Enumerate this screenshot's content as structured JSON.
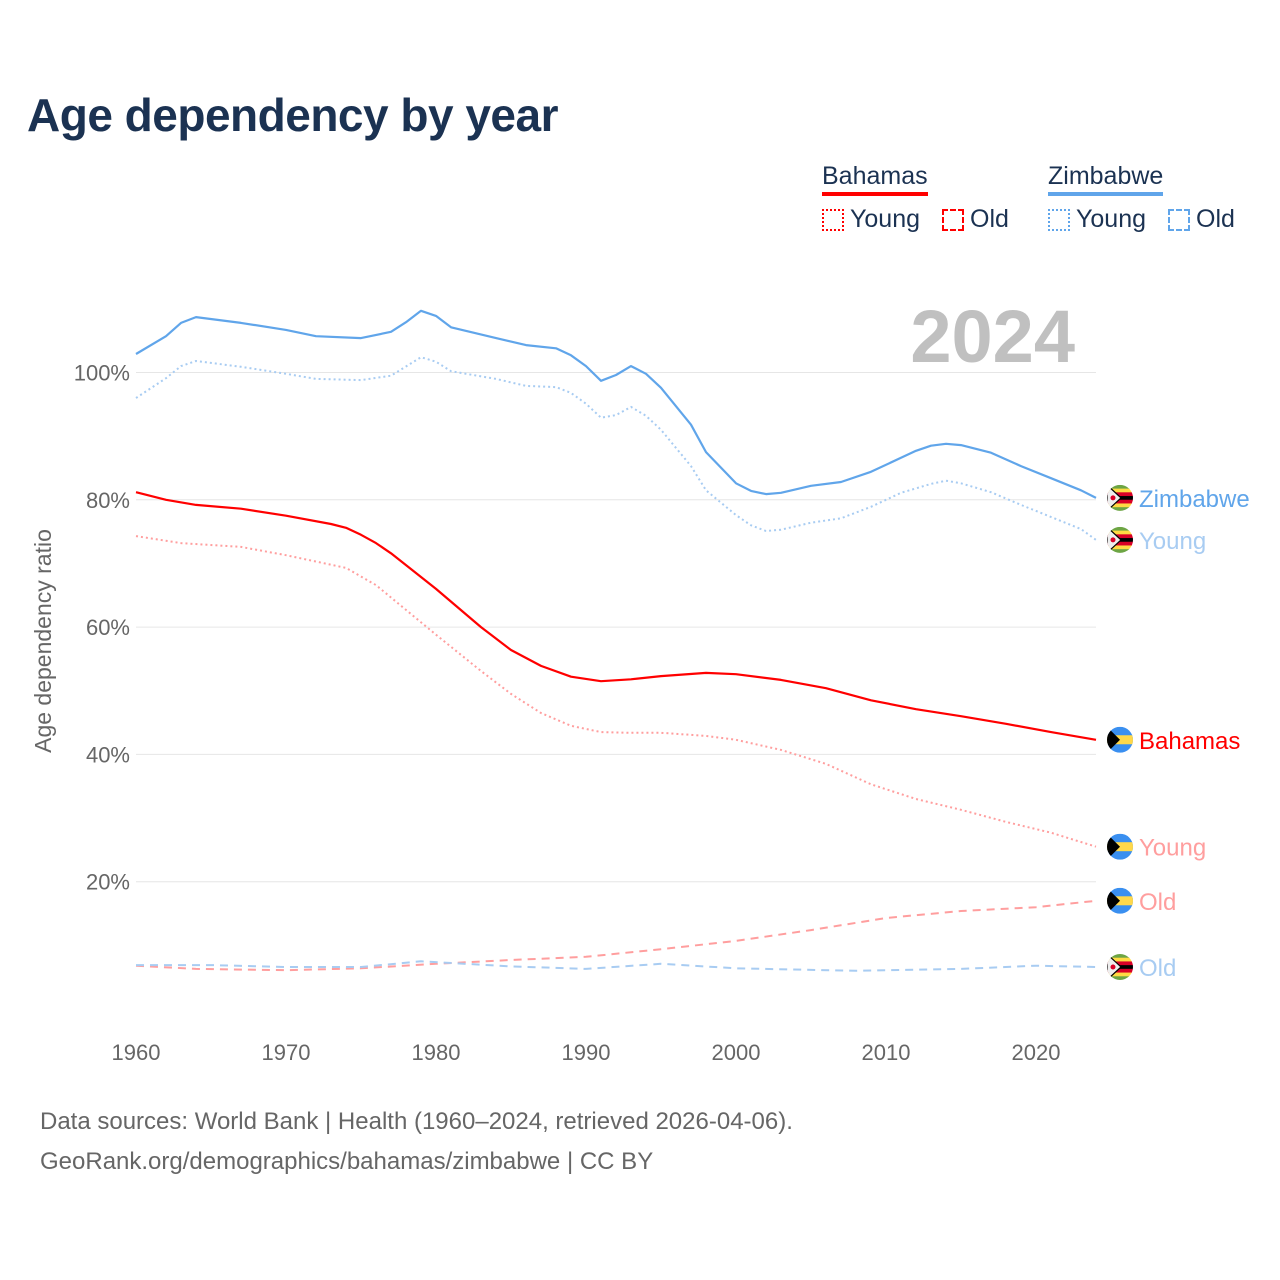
{
  "title": "Age dependency by year",
  "legend": {
    "bahamas": {
      "name": "Bahamas",
      "young": "Young",
      "old": "Old",
      "color": "#ff0000",
      "light": "#ff9e9e"
    },
    "zimbabwe": {
      "name": "Zimbabwe",
      "young": "Young",
      "old": "Old",
      "color": "#60a5ea",
      "light": "#a8ccf2"
    }
  },
  "year_watermark": "2024",
  "footer": {
    "line1": "Data sources: World Bank | Health (1960–2024, retrieved 2026-04-06).",
    "line2": "GeoRank.org/demographics/bahamas/zimbabwe | CC BY"
  },
  "chart_data": {
    "type": "line",
    "title": "Age dependency by year",
    "xlabel": "",
    "ylabel": "Age dependency ratio",
    "xlim": [
      1960,
      2024
    ],
    "ylim": [
      0,
      115
    ],
    "x_ticks": [
      "1960",
      "1970",
      "1980",
      "1990",
      "2000",
      "2010",
      "2020"
    ],
    "y_ticks": [
      {
        "v": 20,
        "label": "20%"
      },
      {
        "v": 40,
        "label": "40%"
      },
      {
        "v": 60,
        "label": "60%"
      },
      {
        "v": 80,
        "label": "80%"
      },
      {
        "v": 100,
        "label": "100%"
      }
    ],
    "grid": true,
    "series": [
      {
        "name": "Zimbabwe",
        "country": "zimbabwe",
        "kind": "total",
        "end_label": "Zimbabwe",
        "color": "#60a5ea",
        "dash": "",
        "points": [
          [
            1960,
            102.9
          ],
          [
            1962,
            105.7
          ],
          [
            1963,
            107.8
          ],
          [
            1964,
            108.7
          ],
          [
            1967,
            107.8
          ],
          [
            1970,
            106.7
          ],
          [
            1972,
            105.7
          ],
          [
            1975,
            105.4
          ],
          [
            1977,
            106.4
          ],
          [
            1978,
            107.9
          ],
          [
            1979,
            109.7
          ],
          [
            1980,
            108.9
          ],
          [
            1981,
            107.1
          ],
          [
            1984,
            105.4
          ],
          [
            1986,
            104.3
          ],
          [
            1988,
            103.8
          ],
          [
            1989,
            102.7
          ],
          [
            1990,
            101
          ],
          [
            1991,
            98.7
          ],
          [
            1992,
            99.6
          ],
          [
            1993,
            101
          ],
          [
            1994,
            99.8
          ],
          [
            1995,
            97.6
          ],
          [
            1997,
            91.8
          ],
          [
            1998,
            87.5
          ],
          [
            2000,
            82.6
          ],
          [
            2001,
            81.4
          ],
          [
            2002,
            80.9
          ],
          [
            2003,
            81.1
          ],
          [
            2005,
            82.2
          ],
          [
            2007,
            82.8
          ],
          [
            2009,
            84.4
          ],
          [
            2011,
            86.6
          ],
          [
            2012,
            87.7
          ],
          [
            2013,
            88.5
          ],
          [
            2014,
            88.8
          ],
          [
            2015,
            88.6
          ],
          [
            2017,
            87.4
          ],
          [
            2019,
            85.3
          ],
          [
            2021,
            83.4
          ],
          [
            2023,
            81.5
          ],
          [
            2024,
            80.3
          ]
        ]
      },
      {
        "name": "Zimbabwe Young",
        "country": "zimbabwe",
        "kind": "young",
        "end_label": "Young",
        "color": "#a8ccf2",
        "dash": "2 3",
        "points": [
          [
            1960,
            96
          ],
          [
            1962,
            99.1
          ],
          [
            1963,
            101
          ],
          [
            1964,
            101.8
          ],
          [
            1967,
            100.9
          ],
          [
            1970,
            99.8
          ],
          [
            1972,
            99
          ],
          [
            1975,
            98.8
          ],
          [
            1977,
            99.5
          ],
          [
            1979,
            102.4
          ],
          [
            1980,
            101.7
          ],
          [
            1981,
            100.2
          ],
          [
            1984,
            99
          ],
          [
            1986,
            97.9
          ],
          [
            1988,
            97.7
          ],
          [
            1989,
            96.8
          ],
          [
            1990,
            95.1
          ],
          [
            1991,
            92.9
          ],
          [
            1992,
            93.3
          ],
          [
            1993,
            94.6
          ],
          [
            1994,
            93.2
          ],
          [
            1995,
            91
          ],
          [
            1997,
            85.3
          ],
          [
            1998,
            81.5
          ],
          [
            2000,
            77.6
          ],
          [
            2001,
            76
          ],
          [
            2002,
            75.1
          ],
          [
            2003,
            75.3
          ],
          [
            2005,
            76.4
          ],
          [
            2007,
            77.1
          ],
          [
            2009,
            78.9
          ],
          [
            2011,
            81.1
          ],
          [
            2013,
            82.5
          ],
          [
            2014,
            83
          ],
          [
            2015,
            82.6
          ],
          [
            2017,
            81.2
          ],
          [
            2019,
            79.2
          ],
          [
            2021,
            77.3
          ],
          [
            2023,
            75.4
          ],
          [
            2024,
            73.7
          ]
        ]
      },
      {
        "name": "Bahamas",
        "country": "bahamas",
        "kind": "total",
        "end_label": "Bahamas",
        "color": "#ff0000",
        "dash": "",
        "points": [
          [
            1960,
            81.2
          ],
          [
            1962,
            80
          ],
          [
            1964,
            79.2
          ],
          [
            1967,
            78.6
          ],
          [
            1970,
            77.5
          ],
          [
            1973,
            76.2
          ],
          [
            1974,
            75.6
          ],
          [
            1975,
            74.5
          ],
          [
            1976,
            73.2
          ],
          [
            1977,
            71.6
          ],
          [
            1980,
            66
          ],
          [
            1983,
            60
          ],
          [
            1985,
            56.4
          ],
          [
            1987,
            53.9
          ],
          [
            1989,
            52.2
          ],
          [
            1991,
            51.5
          ],
          [
            1993,
            51.8
          ],
          [
            1995,
            52.3
          ],
          [
            1998,
            52.8
          ],
          [
            2000,
            52.6
          ],
          [
            2003,
            51.7
          ],
          [
            2006,
            50.4
          ],
          [
            2009,
            48.5
          ],
          [
            2012,
            47.1
          ],
          [
            2015,
            46
          ],
          [
            2018,
            44.8
          ],
          [
            2021,
            43.5
          ],
          [
            2024,
            42.3
          ]
        ]
      },
      {
        "name": "Bahamas Young",
        "country": "bahamas",
        "kind": "young",
        "end_label": "Young",
        "color": "#ff9e9e",
        "dash": "2 3",
        "points": [
          [
            1960,
            74.3
          ],
          [
            1963,
            73.2
          ],
          [
            1967,
            72.6
          ],
          [
            1970,
            71.3
          ],
          [
            1974,
            69.3
          ],
          [
            1976,
            66.6
          ],
          [
            1978,
            62.7
          ],
          [
            1980,
            58.8
          ],
          [
            1983,
            53.1
          ],
          [
            1985,
            49.5
          ],
          [
            1987,
            46.5
          ],
          [
            1989,
            44.5
          ],
          [
            1991,
            43.5
          ],
          [
            1993,
            43.4
          ],
          [
            1995,
            43.4
          ],
          [
            1998,
            42.9
          ],
          [
            2000,
            42.3
          ],
          [
            2003,
            40.7
          ],
          [
            2006,
            38.5
          ],
          [
            2009,
            35.3
          ],
          [
            2012,
            33
          ],
          [
            2015,
            31.3
          ],
          [
            2018,
            29.4
          ],
          [
            2021,
            27.7
          ],
          [
            2024,
            25.5
          ]
        ]
      },
      {
        "name": "Bahamas Old",
        "country": "bahamas",
        "kind": "old",
        "end_label": "Old",
        "color": "#ff9e9e",
        "dash": "8 6",
        "points": [
          [
            1960,
            6.8
          ],
          [
            1964,
            6.3
          ],
          [
            1970,
            6.1
          ],
          [
            1975,
            6.4
          ],
          [
            1980,
            7.1
          ],
          [
            1985,
            7.7
          ],
          [
            1990,
            8.2
          ],
          [
            1995,
            9.4
          ],
          [
            2000,
            10.7
          ],
          [
            2005,
            12.4
          ],
          [
            2010,
            14.3
          ],
          [
            2015,
            15.4
          ],
          [
            2020,
            16
          ],
          [
            2024,
            17
          ]
        ]
      },
      {
        "name": "Zimbabwe Old",
        "country": "zimbabwe",
        "kind": "old",
        "end_label": "Old",
        "color": "#a8ccf2",
        "dash": "8 6",
        "points": [
          [
            1960,
            6.9
          ],
          [
            1965,
            6.9
          ],
          [
            1970,
            6.6
          ],
          [
            1975,
            6.6
          ],
          [
            1979,
            7.5
          ],
          [
            1985,
            6.7
          ],
          [
            1990,
            6.3
          ],
          [
            1995,
            7.1
          ],
          [
            2000,
            6.4
          ],
          [
            2008,
            6.0
          ],
          [
            2015,
            6.3
          ],
          [
            2020,
            6.8
          ],
          [
            2024,
            6.6
          ]
        ]
      }
    ]
  }
}
